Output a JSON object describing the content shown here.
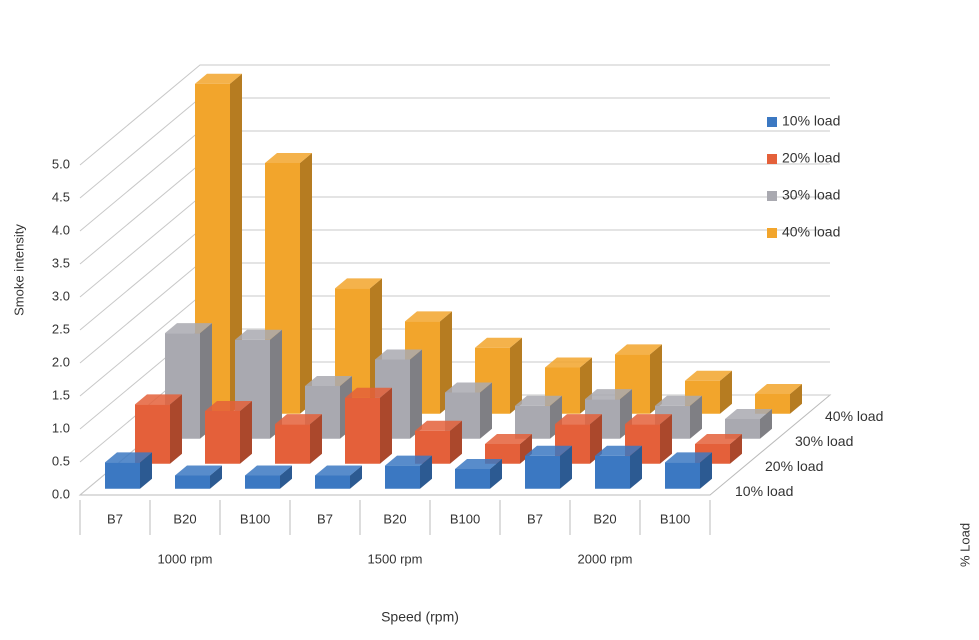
{
  "chart_data": {
    "type": "bar3d",
    "y_label": "Smoke intensity",
    "x_label": "Speed (rpm)",
    "z_label": "% Load",
    "categories": [
      "B7",
      "B20",
      "B100",
      "B7",
      "B20",
      "B100",
      "B7",
      "B20",
      "B100"
    ],
    "groups": [
      "1000 rpm",
      "1500 rpm",
      "2000 rpm"
    ],
    "series": [
      {
        "name": "10% load",
        "color": "#3b78c2",
        "values": [
          0.4,
          0.2,
          0.2,
          0.2,
          0.35,
          0.3,
          0.5,
          0.5,
          0.4
        ]
      },
      {
        "name": "20% load",
        "color": "#e4603a",
        "values": [
          0.9,
          0.8,
          0.6,
          1.0,
          0.5,
          0.3,
          0.6,
          0.6,
          0.3
        ]
      },
      {
        "name": "30% load",
        "color": "#a9a9b0",
        "values": [
          1.6,
          1.5,
          0.8,
          1.2,
          0.7,
          0.5,
          0.6,
          0.5,
          0.3
        ]
      },
      {
        "name": "40% load",
        "color": "#f2a52c",
        "values": [
          5.0,
          3.8,
          1.9,
          1.4,
          1.0,
          0.7,
          0.9,
          0.5,
          0.3
        ]
      }
    ],
    "ylim": [
      0,
      5
    ],
    "yticks": [
      {
        "value": 0,
        "label": "0.0"
      },
      0.5,
      {
        "value": 1,
        "label": "1.0"
      },
      1.5,
      {
        "value": 2,
        "label": "2.0"
      },
      2.5,
      {
        "value": 3,
        "label": "3.0"
      },
      3.5,
      {
        "value": 4,
        "label": "4.0"
      },
      4.5,
      {
        "value": 5,
        "label": "5.0"
      }
    ],
    "grid": true,
    "legend": "right"
  }
}
